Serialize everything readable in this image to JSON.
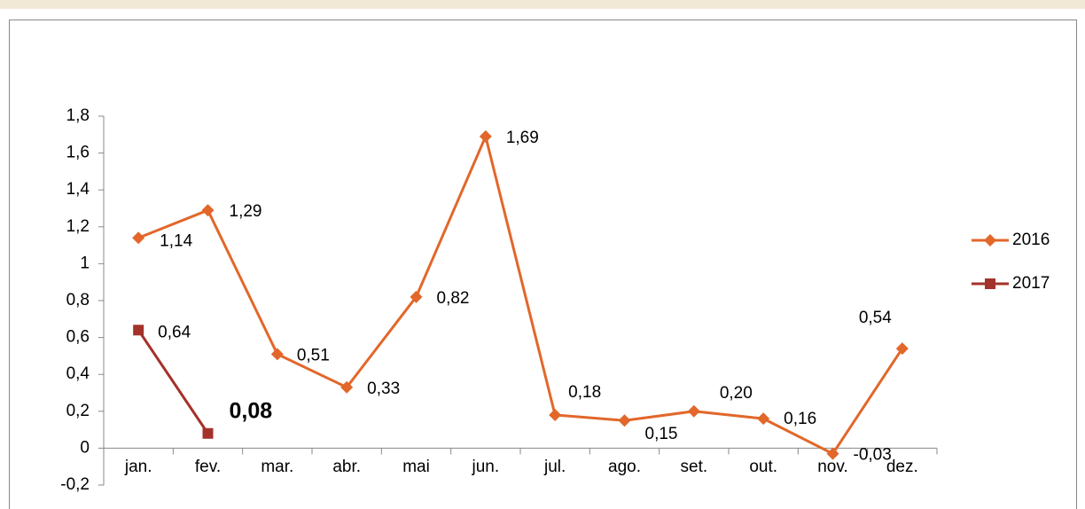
{
  "chart_data": {
    "type": "line",
    "categories": [
      "jan.",
      "fev.",
      "mar.",
      "abr.",
      "mai",
      "jun.",
      "jul.",
      "ago.",
      "set.",
      "out.",
      "nov.",
      "dez."
    ],
    "series": [
      {
        "name": "2016",
        "color": "#e2672a",
        "marker": "diamond",
        "values": [
          1.14,
          1.29,
          0.51,
          0.33,
          0.82,
          1.69,
          0.18,
          0.15,
          0.2,
          0.16,
          -0.03,
          0.54
        ],
        "value_labels": [
          "1,14",
          "1,29",
          "0,51",
          "0,33",
          "0,82",
          "1,69",
          "0,18",
          "0,15",
          "0,20",
          "0,16",
          "-0,03",
          "0,54"
        ]
      },
      {
        "name": "2017",
        "color": "#a3322a",
        "marker": "square",
        "values": [
          0.64,
          0.08,
          null,
          null,
          null,
          null,
          null,
          null,
          null,
          null,
          null,
          null
        ],
        "value_labels": [
          "0,64",
          "0,08",
          null,
          null,
          null,
          null,
          null,
          null,
          null,
          null,
          null,
          null
        ]
      }
    ],
    "ylim": [
      -0.2,
      1.8
    ],
    "yticks": [
      {
        "value": -0.2,
        "label": "-0,2"
      },
      0,
      {
        "value": 0.2,
        "label": "0,2"
      },
      {
        "value": 0.4,
        "label": "0,4"
      },
      {
        "value": 0.6,
        "label": "0,6"
      },
      {
        "value": 0.8,
        "label": "0,8"
      },
      1,
      {
        "value": 1.2,
        "label": "1,2"
      },
      {
        "value": 1.4,
        "label": "1,4"
      },
      {
        "value": 1.6,
        "label": "1,6"
      },
      {
        "value": 1.8,
        "label": "1,8"
      }
    ],
    "grid": false,
    "legend": "right"
  }
}
